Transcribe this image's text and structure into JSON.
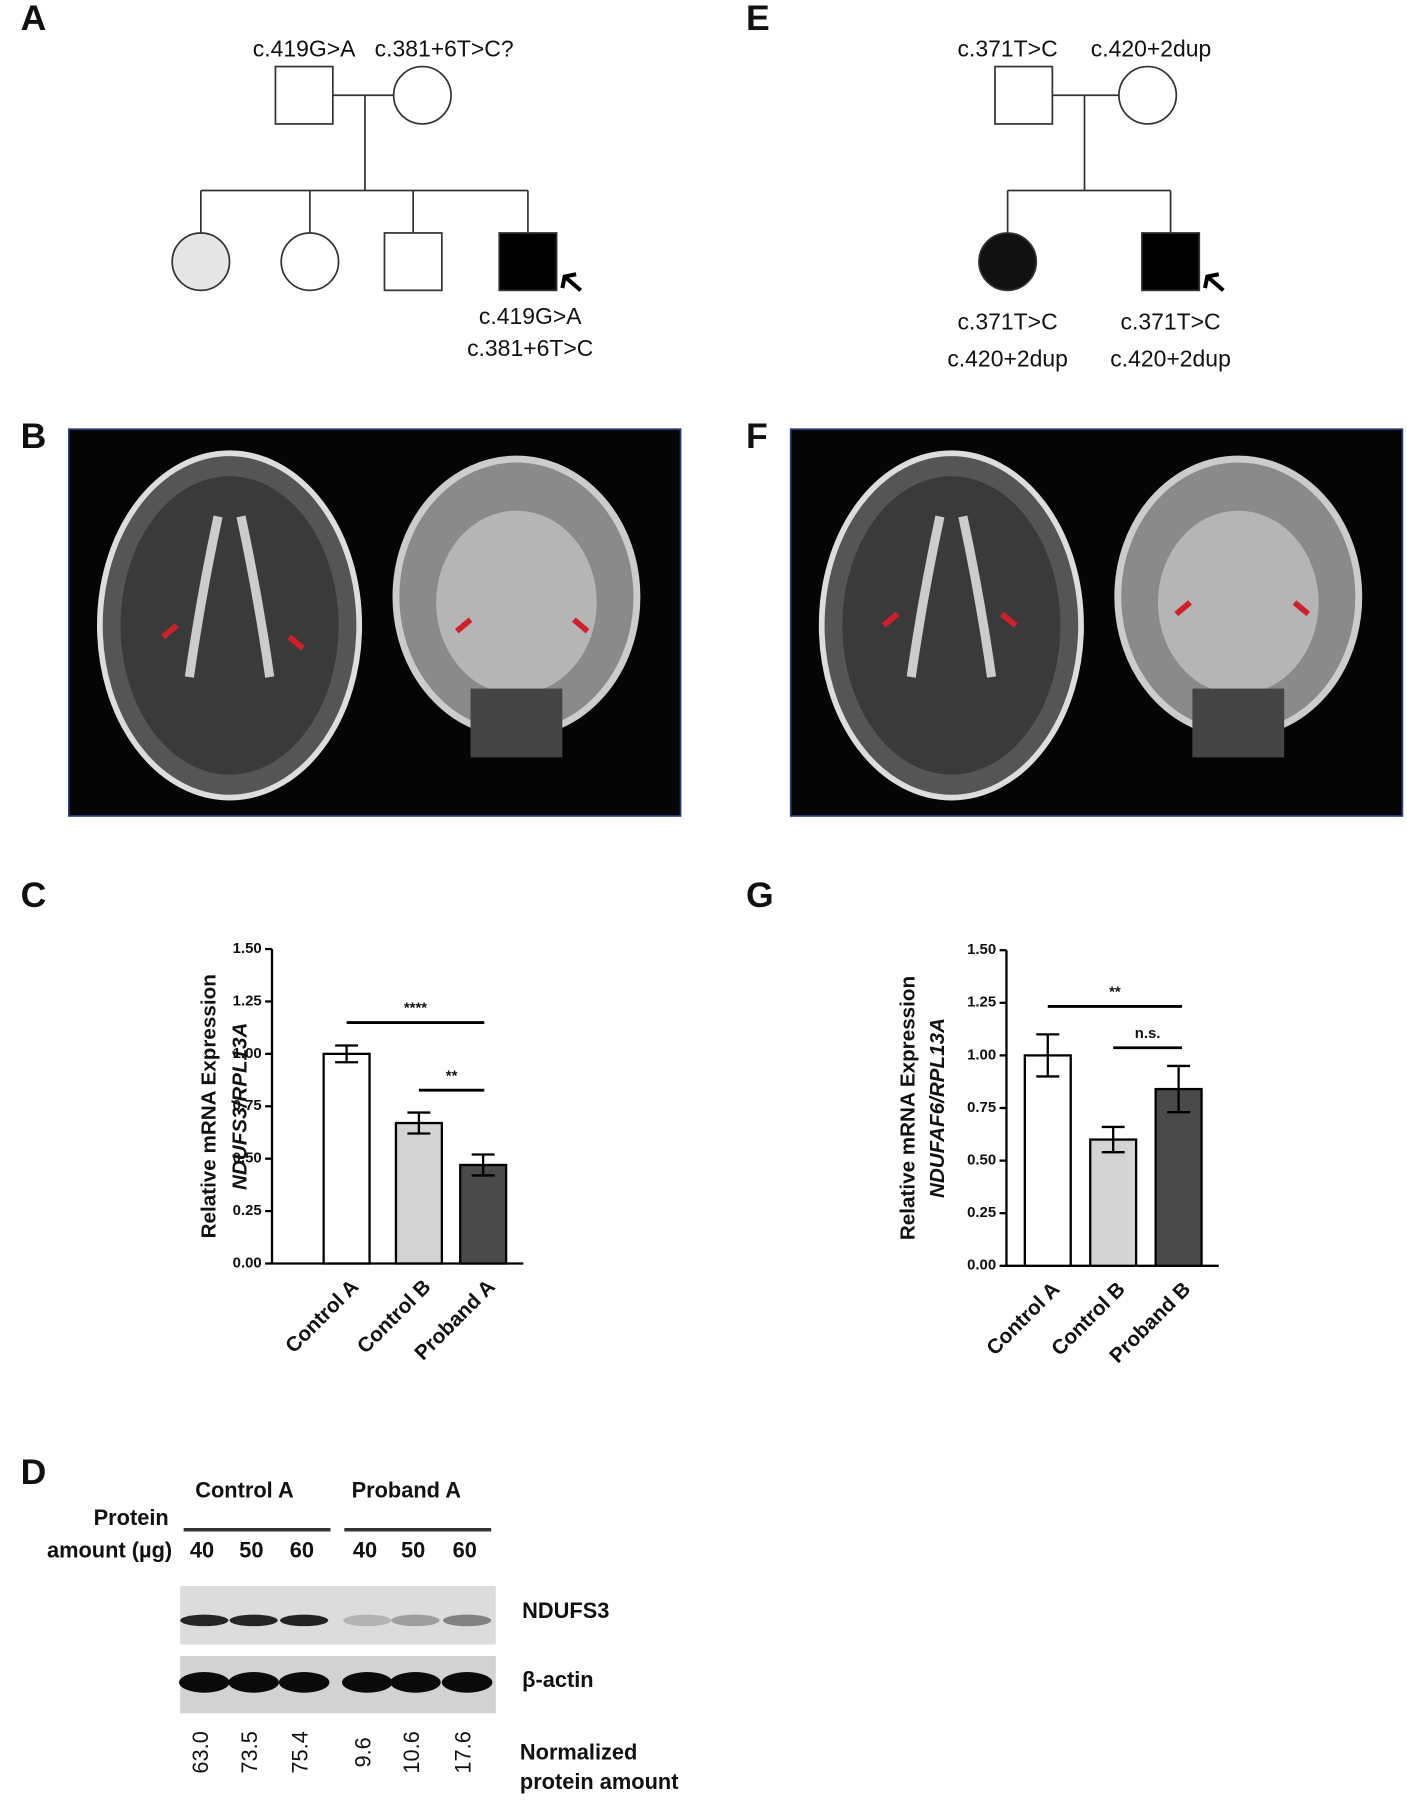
{
  "labels": [
    "A",
    "B",
    "C",
    "D",
    "E",
    "F",
    "G"
  ],
  "pedigree_a": {
    "father": "c.419G>A",
    "mother": "c.381+6T>C?",
    "proband": [
      "c.419G>A",
      "c.381+6T>C"
    ]
  },
  "pedigree_e": {
    "father": "c.371T>C",
    "mother": "c.420+2dup",
    "affected_sister": [
      "c.371T>C",
      "c.420+2dup"
    ],
    "proband": [
      "c.371T>C",
      "c.420+2dup"
    ]
  },
  "chart_data": [
    {
      "type": "bar",
      "ylabel": [
        "Relative mRNA Expression",
        "NDUFS3/RPL13A"
      ],
      "categories": [
        "Control A",
        "Control B",
        "Proband A"
      ],
      "values": [
        1.0,
        0.67,
        0.47
      ],
      "errors": [
        0.04,
        0.05,
        0.05
      ],
      "colors": [
        "#ffffff",
        "#d4d4d4",
        "#4a4a4a"
      ],
      "ylim": [
        0,
        1.5
      ],
      "yticks": [
        {
          "value": 0,
          "label": "0.00"
        },
        {
          "value": 0.25,
          "label": "0.25"
        },
        {
          "value": 0.5,
          "label": "0.50"
        },
        {
          "value": 0.75,
          "label": "0.75"
        },
        {
          "value": 1,
          "label": "1.00"
        },
        {
          "value": 1.25,
          "label": "1.25"
        },
        {
          "value": 1.5,
          "label": "1.50"
        }
      ],
      "annotations": [
        "****",
        "**"
      ]
    },
    {
      "type": "bar",
      "ylabel": [
        "Relative mRNA Expression",
        "NDUFAF6/RPL13A"
      ],
      "categories": [
        "Control A",
        "Control B",
        "Proband B"
      ],
      "values": [
        1.0,
        0.6,
        0.84
      ],
      "errors": [
        0.1,
        0.06,
        0.11
      ],
      "colors": [
        "#ffffff",
        "#d4d4d4",
        "#4a4a4a"
      ],
      "ylim": [
        0,
        1.5
      ],
      "yticks": [
        {
          "value": 0,
          "label": "0.00"
        },
        {
          "value": 0.25,
          "label": "0.25"
        },
        {
          "value": 0.5,
          "label": "0.50"
        },
        {
          "value": 0.75,
          "label": "0.75"
        },
        {
          "value": 1,
          "label": "1.00"
        },
        {
          "value": 1.25,
          "label": "1.25"
        },
        {
          "value": 1.5,
          "label": "1.50"
        }
      ],
      "annotations": [
        "**",
        "n.s."
      ]
    }
  ],
  "western_blot": {
    "groups": [
      "Control A",
      "Proband A"
    ],
    "amount_label": [
      "Protein",
      "amount (µg)"
    ],
    "lanes": [
      "40",
      "50",
      "60",
      "40",
      "50",
      "60"
    ],
    "bands": [
      "NDUFS3",
      "β-actin"
    ],
    "normalized": [
      "63.0",
      "73.5",
      "75.4",
      "9.6",
      "10.6",
      "17.6"
    ],
    "normalized_label": [
      "Normalized",
      "protein amount"
    ]
  }
}
